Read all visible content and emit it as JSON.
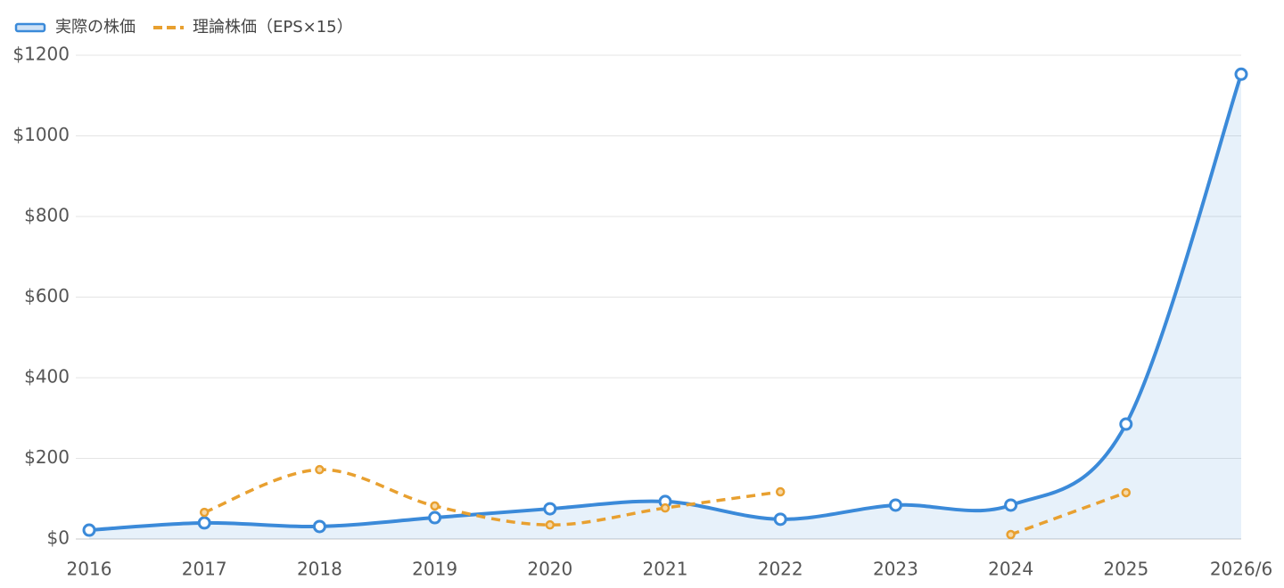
{
  "chart_data": {
    "type": "line",
    "categories": [
      "2016",
      "2017",
      "2018",
      "2019",
      "2020",
      "2021",
      "2022",
      "2023",
      "2024",
      "2025",
      "2026/6"
    ],
    "series": [
      {
        "name": "実際の株価",
        "color": "#3b8ad9",
        "values": [
          22,
          40,
          31,
          53,
          75,
          93,
          49,
          84,
          84,
          285,
          1153
        ]
      },
      {
        "name": "理論株価（EPS×15）",
        "color": "#e8a030",
        "values": [
          null,
          66,
          172,
          82,
          35,
          77,
          117,
          null,
          11,
          115,
          null
        ]
      }
    ],
    "ylim": [
      0,
      1200
    ],
    "yticks": [
      {
        "value": 0,
        "label": "$0"
      },
      {
        "value": 200,
        "label": "$200"
      },
      {
        "value": 400,
        "label": "$400"
      },
      {
        "value": 600,
        "label": "$600"
      },
      {
        "value": 800,
        "label": "$800"
      },
      {
        "value": 1000,
        "label": "$1000"
      },
      {
        "value": 1200,
        "label": "$1200"
      }
    ],
    "grid": true
  }
}
